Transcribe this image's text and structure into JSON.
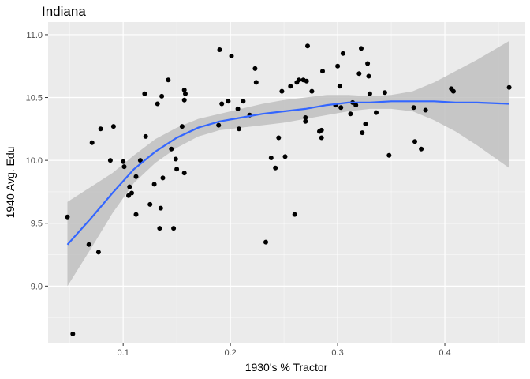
{
  "chart_data": {
    "type": "scatter",
    "title": "Indiana",
    "xlabel": "1930's % Tractor",
    "ylabel": "1940 Avg. Edu",
    "xlim": [
      0.03,
      0.475
    ],
    "ylim": [
      8.55,
      11.1
    ],
    "x_ticks": [
      0.1,
      0.2,
      0.3,
      0.4
    ],
    "x_tick_labels": [
      "0.1",
      "0.2",
      "0.3",
      "0.4"
    ],
    "y_ticks": [
      9.0,
      9.5,
      10.0,
      10.5,
      11.0
    ],
    "y_tick_labels": [
      "9.0",
      "9.5",
      "10.0",
      "10.5",
      "11.0"
    ],
    "grid": true,
    "colors": {
      "panel_background": "#ebebeb",
      "grid_major": "#ffffff",
      "point": "#000000",
      "smooth_line": "#3366ff",
      "confidence_band": "#bdbdbd"
    },
    "points": [
      [
        0.048,
        9.55
      ],
      [
        0.053,
        8.62
      ],
      [
        0.068,
        9.33
      ],
      [
        0.071,
        10.14
      ],
      [
        0.077,
        9.27
      ],
      [
        0.079,
        10.25
      ],
      [
        0.088,
        10.0
      ],
      [
        0.091,
        10.27
      ],
      [
        0.1,
        9.99
      ],
      [
        0.101,
        9.95
      ],
      [
        0.105,
        9.72
      ],
      [
        0.106,
        9.79
      ],
      [
        0.108,
        9.74
      ],
      [
        0.112,
        9.87
      ],
      [
        0.112,
        9.57
      ],
      [
        0.116,
        10.0
      ],
      [
        0.12,
        10.53
      ],
      [
        0.121,
        10.19
      ],
      [
        0.125,
        9.65
      ],
      [
        0.129,
        9.81
      ],
      [
        0.132,
        10.45
      ],
      [
        0.134,
        9.46
      ],
      [
        0.135,
        9.62
      ],
      [
        0.136,
        10.51
      ],
      [
        0.137,
        9.86
      ],
      [
        0.142,
        10.64
      ],
      [
        0.145,
        10.09
      ],
      [
        0.147,
        9.46
      ],
      [
        0.149,
        10.01
      ],
      [
        0.15,
        9.93
      ],
      [
        0.155,
        10.27
      ],
      [
        0.157,
        9.9
      ],
      [
        0.158,
        10.53
      ],
      [
        0.157,
        10.56
      ],
      [
        0.157,
        10.48
      ],
      [
        0.189,
        10.28
      ],
      [
        0.19,
        10.88
      ],
      [
        0.192,
        10.45
      ],
      [
        0.198,
        10.47
      ],
      [
        0.201,
        10.83
      ],
      [
        0.207,
        10.41
      ],
      [
        0.208,
        10.25
      ],
      [
        0.212,
        10.47
      ],
      [
        0.218,
        10.36
      ],
      [
        0.223,
        10.73
      ],
      [
        0.224,
        10.62
      ],
      [
        0.233,
        9.35
      ],
      [
        0.238,
        10.02
      ],
      [
        0.242,
        9.94
      ],
      [
        0.245,
        10.18
      ],
      [
        0.248,
        10.55
      ],
      [
        0.251,
        10.03
      ],
      [
        0.256,
        10.59
      ],
      [
        0.26,
        9.57
      ],
      [
        0.262,
        10.62
      ],
      [
        0.264,
        10.64
      ],
      [
        0.268,
        10.64
      ],
      [
        0.27,
        10.31
      ],
      [
        0.27,
        10.34
      ],
      [
        0.271,
        10.63
      ],
      [
        0.272,
        10.91
      ],
      [
        0.276,
        10.55
      ],
      [
        0.283,
        10.23
      ],
      [
        0.285,
        10.24
      ],
      [
        0.285,
        10.18
      ],
      [
        0.286,
        10.71
      ],
      [
        0.298,
        10.44
      ],
      [
        0.3,
        10.75
      ],
      [
        0.302,
        10.59
      ],
      [
        0.303,
        10.42
      ],
      [
        0.305,
        10.85
      ],
      [
        0.312,
        10.37
      ],
      [
        0.314,
        10.46
      ],
      [
        0.317,
        10.44
      ],
      [
        0.32,
        10.69
      ],
      [
        0.322,
        10.89
      ],
      [
        0.323,
        10.22
      ],
      [
        0.326,
        10.29
      ],
      [
        0.328,
        10.77
      ],
      [
        0.329,
        10.67
      ],
      [
        0.33,
        10.53
      ],
      [
        0.336,
        10.38
      ],
      [
        0.344,
        10.54
      ],
      [
        0.348,
        10.04
      ],
      [
        0.371,
        10.42
      ],
      [
        0.372,
        10.15
      ],
      [
        0.378,
        10.09
      ],
      [
        0.382,
        10.4
      ],
      [
        0.406,
        10.57
      ],
      [
        0.408,
        10.55
      ],
      [
        0.46,
        10.58
      ]
    ],
    "smooth_fit": {
      "x": [
        0.048,
        0.07,
        0.09,
        0.11,
        0.13,
        0.15,
        0.17,
        0.19,
        0.21,
        0.23,
        0.25,
        0.27,
        0.29,
        0.31,
        0.33,
        0.35,
        0.37,
        0.39,
        0.41,
        0.43,
        0.46
      ],
      "y": [
        9.33,
        9.54,
        9.74,
        9.93,
        10.07,
        10.18,
        10.26,
        10.31,
        10.34,
        10.37,
        10.39,
        10.41,
        10.44,
        10.46,
        10.46,
        10.47,
        10.47,
        10.47,
        10.46,
        10.46,
        10.45
      ],
      "lower": [
        9.0,
        9.3,
        9.58,
        9.82,
        9.98,
        10.1,
        10.19,
        10.24,
        10.26,
        10.28,
        10.3,
        10.33,
        10.36,
        10.39,
        10.41,
        10.41,
        10.39,
        10.32,
        10.23,
        10.12,
        9.94
      ],
      "upper": [
        9.67,
        9.79,
        9.9,
        10.04,
        10.17,
        10.26,
        10.33,
        10.37,
        10.41,
        10.45,
        10.48,
        10.5,
        10.52,
        10.52,
        10.51,
        10.52,
        10.55,
        10.62,
        10.71,
        10.8,
        10.95
      ]
    }
  }
}
